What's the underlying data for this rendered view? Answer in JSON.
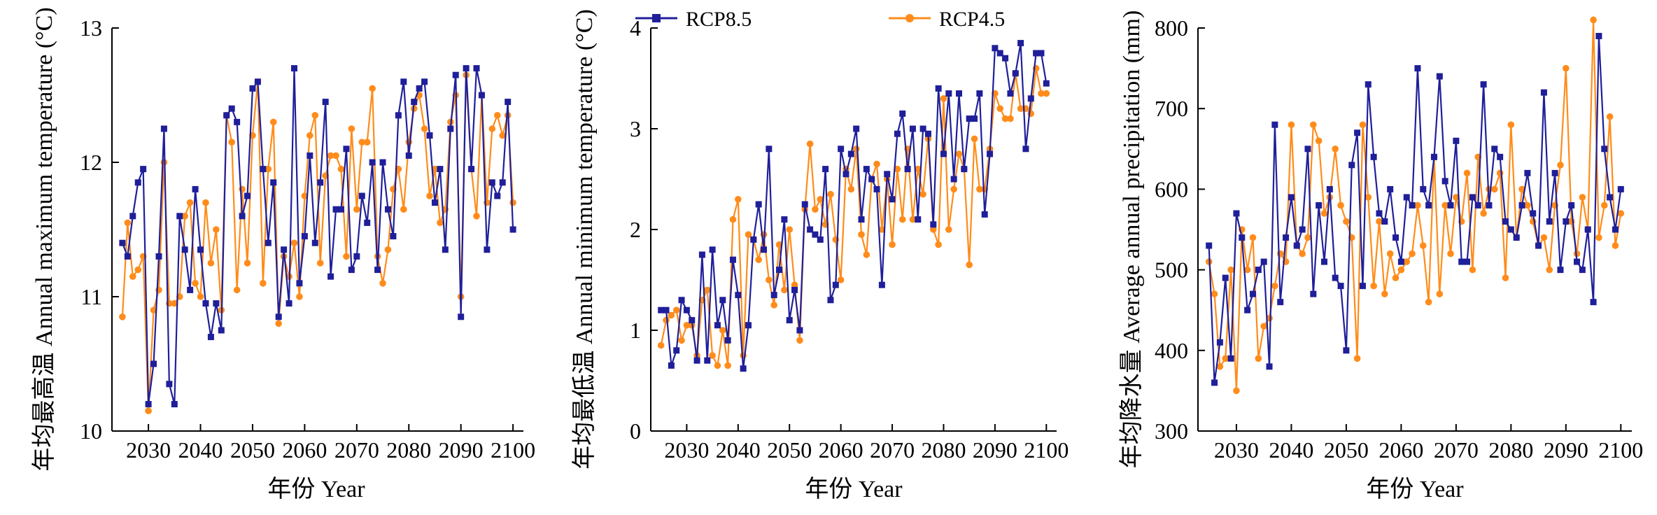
{
  "legend": [
    {
      "name": "RCP8.5",
      "color": "#1f1f9a"
    },
    {
      "name": "RCP4.5",
      "color": "#ff8c1a"
    }
  ],
  "chart_data": [
    {
      "type": "line",
      "ylabel": "年均最高温 Annual maximum temperature (°C)",
      "xlabel": "年份 Year",
      "xlim": [
        2025,
        2100
      ],
      "ylim": [
        10,
        13
      ],
      "xticks": [
        2030,
        2040,
        2050,
        2060,
        2070,
        2080,
        2090,
        2100
      ],
      "yticks": [
        10,
        11,
        12,
        13
      ],
      "x": [
        2025,
        2026,
        2027,
        2028,
        2029,
        2030,
        2031,
        2032,
        2033,
        2034,
        2035,
        2036,
        2037,
        2038,
        2039,
        2040,
        2041,
        2042,
        2043,
        2044,
        2045,
        2046,
        2047,
        2048,
        2049,
        2050,
        2051,
        2052,
        2053,
        2054,
        2055,
        2056,
        2057,
        2058,
        2059,
        2060,
        2061,
        2062,
        2063,
        2064,
        2065,
        2066,
        2067,
        2068,
        2069,
        2070,
        2071,
        2072,
        2073,
        2074,
        2075,
        2076,
        2077,
        2078,
        2079,
        2080,
        2081,
        2082,
        2083,
        2084,
        2085,
        2086,
        2087,
        2088,
        2089,
        2090,
        2091,
        2092,
        2093,
        2094,
        2095,
        2096,
        2097,
        2098,
        2099,
        2100
      ],
      "series": [
        {
          "name": "RCP8.5",
          "values": [
            11.4,
            11.3,
            11.6,
            11.85,
            11.95,
            10.2,
            10.5,
            11.3,
            12.25,
            10.35,
            10.2,
            11.6,
            11.35,
            11.05,
            11.8,
            11.35,
            10.95,
            10.7,
            10.95,
            10.75,
            12.35,
            12.4,
            12.3,
            11.6,
            11.75,
            12.55,
            12.6,
            11.95,
            11.4,
            11.85,
            10.85,
            11.35,
            10.95,
            12.7,
            11.1,
            11.45,
            12.05,
            11.4,
            11.85,
            12.45,
            11.15,
            11.65,
            11.65,
            12.1,
            11.2,
            11.3,
            11.75,
            11.55,
            12.0,
            11.2,
            12.0,
            11.65,
            11.45,
            12.35,
            12.6,
            12.05,
            12.45,
            12.55,
            12.6,
            12.2,
            11.7,
            11.95,
            11.35,
            12.25,
            12.65,
            10.85,
            12.7,
            11.95,
            12.7,
            12.5,
            11.35,
            11.85,
            11.75,
            11.85,
            12.45,
            11.5
          ]
        },
        {
          "name": "RCP4.5",
          "values": [
            10.85,
            11.55,
            11.15,
            11.2,
            11.3,
            10.15,
            10.9,
            11.05,
            12.0,
            10.95,
            10.95,
            11.0,
            11.6,
            11.7,
            11.1,
            11.0,
            11.7,
            11.25,
            11.5,
            10.9,
            12.35,
            12.15,
            11.05,
            11.8,
            11.25,
            12.2,
            12.6,
            11.1,
            11.95,
            12.3,
            10.8,
            11.3,
            11.15,
            11.4,
            11.0,
            11.75,
            12.2,
            12.35,
            11.25,
            11.9,
            12.05,
            12.05,
            11.95,
            11.3,
            12.25,
            11.65,
            12.15,
            12.15,
            12.55,
            11.3,
            11.1,
            11.35,
            11.8,
            11.95,
            11.65,
            12.15,
            12.4,
            12.5,
            12.25,
            11.75,
            11.95,
            11.55,
            11.65,
            12.3,
            12.5,
            11.0,
            12.65,
            11.95,
            11.6,
            12.5,
            11.7,
            12.25,
            12.35,
            12.2,
            12.35,
            11.7
          ]
        }
      ]
    },
    {
      "type": "line",
      "ylabel": "年均最低温 Annual minimum temperature (°C)",
      "xlabel": "年份 Year",
      "xlim": [
        2025,
        2100
      ],
      "ylim": [
        0,
        4
      ],
      "xticks": [
        2030,
        2040,
        2050,
        2060,
        2070,
        2080,
        2090,
        2100
      ],
      "yticks": [
        0,
        1,
        2,
        3,
        4
      ],
      "x": [
        2025,
        2026,
        2027,
        2028,
        2029,
        2030,
        2031,
        2032,
        2033,
        2034,
        2035,
        2036,
        2037,
        2038,
        2039,
        2040,
        2041,
        2042,
        2043,
        2044,
        2045,
        2046,
        2047,
        2048,
        2049,
        2050,
        2051,
        2052,
        2053,
        2054,
        2055,
        2056,
        2057,
        2058,
        2059,
        2060,
        2061,
        2062,
        2063,
        2064,
        2065,
        2066,
        2067,
        2068,
        2069,
        2070,
        2071,
        2072,
        2073,
        2074,
        2075,
        2076,
        2077,
        2078,
        2079,
        2080,
        2081,
        2082,
        2083,
        2084,
        2085,
        2086,
        2087,
        2088,
        2089,
        2090,
        2091,
        2092,
        2093,
        2094,
        2095,
        2096,
        2097,
        2098,
        2099,
        2100
      ],
      "series": [
        {
          "name": "RCP8.5",
          "values": [
            1.2,
            1.2,
            0.65,
            0.8,
            1.3,
            1.2,
            1.1,
            0.7,
            1.75,
            0.7,
            1.8,
            1.05,
            1.3,
            0.9,
            1.7,
            1.35,
            0.62,
            1.05,
            1.9,
            2.25,
            1.8,
            2.8,
            1.35,
            1.6,
            2.1,
            1.1,
            1.4,
            1.0,
            2.25,
            2.0,
            1.95,
            1.9,
            2.6,
            1.3,
            1.45,
            2.8,
            2.55,
            2.75,
            3.0,
            2.1,
            2.6,
            2.5,
            2.4,
            1.45,
            2.55,
            2.3,
            2.95,
            3.15,
            2.6,
            3.0,
            2.1,
            3.0,
            2.95,
            2.05,
            3.4,
            2.75,
            3.35,
            2.5,
            3.35,
            2.6,
            3.1,
            3.1,
            3.35,
            2.15,
            2.75,
            3.8,
            3.75,
            3.7,
            3.35,
            3.55,
            3.85,
            2.8,
            3.3,
            3.75,
            3.75,
            3.45
          ]
        },
        {
          "name": "RCP4.5",
          "values": [
            0.85,
            1.1,
            1.15,
            1.2,
            0.9,
            1.05,
            1.05,
            0.75,
            1.3,
            1.4,
            0.75,
            0.65,
            1.0,
            0.65,
            2.1,
            2.3,
            0.75,
            1.95,
            1.9,
            1.7,
            1.95,
            1.5,
            1.25,
            1.85,
            1.4,
            2.0,
            1.45,
            0.9,
            2.2,
            2.85,
            2.2,
            2.3,
            2.05,
            2.35,
            1.9,
            1.5,
            2.6,
            2.4,
            2.8,
            1.95,
            1.75,
            2.5,
            2.65,
            2.0,
            2.5,
            1.85,
            2.6,
            2.1,
            2.8,
            2.1,
            2.6,
            2.35,
            2.9,
            2.0,
            1.85,
            3.3,
            2.0,
            2.4,
            2.75,
            2.6,
            1.65,
            2.9,
            2.4,
            2.4,
            2.8,
            3.35,
            3.2,
            3.1,
            3.1,
            3.55,
            3.2,
            3.2,
            3.15,
            3.6,
            3.35,
            3.35
          ]
        }
      ]
    },
    {
      "type": "line",
      "ylabel": "年均降水量 Average annual precipitation (mm)",
      "xlabel": "年份 Year",
      "xlim": [
        2025,
        2100
      ],
      "ylim": [
        300,
        800
      ],
      "xticks": [
        2030,
        2040,
        2050,
        2060,
        2070,
        2080,
        2090,
        2100
      ],
      "yticks": [
        300,
        400,
        500,
        600,
        700,
        800
      ],
      "x": [
        2025,
        2026,
        2027,
        2028,
        2029,
        2030,
        2031,
        2032,
        2033,
        2034,
        2035,
        2036,
        2037,
        2038,
        2039,
        2040,
        2041,
        2042,
        2043,
        2044,
        2045,
        2046,
        2047,
        2048,
        2049,
        2050,
        2051,
        2052,
        2053,
        2054,
        2055,
        2056,
        2057,
        2058,
        2059,
        2060,
        2061,
        2062,
        2063,
        2064,
        2065,
        2066,
        2067,
        2068,
        2069,
        2070,
        2071,
        2072,
        2073,
        2074,
        2075,
        2076,
        2077,
        2078,
        2079,
        2080,
        2081,
        2082,
        2083,
        2084,
        2085,
        2086,
        2087,
        2088,
        2089,
        2090,
        2091,
        2092,
        2093,
        2094,
        2095,
        2096,
        2097,
        2098,
        2099,
        2100
      ],
      "series": [
        {
          "name": "RCP8.5",
          "values": [
            530,
            360,
            410,
            490,
            390,
            570,
            540,
            450,
            470,
            500,
            510,
            380,
            680,
            460,
            540,
            590,
            530,
            550,
            650,
            470,
            580,
            510,
            600,
            490,
            480,
            400,
            630,
            670,
            480,
            730,
            640,
            570,
            560,
            600,
            540,
            510,
            590,
            580,
            750,
            600,
            580,
            640,
            740,
            610,
            580,
            660,
            510,
            510,
            590,
            580,
            730,
            580,
            650,
            640,
            560,
            550,
            540,
            580,
            620,
            570,
            530,
            720,
            560,
            620,
            500,
            560,
            580,
            510,
            500,
            550,
            460,
            790,
            650,
            590,
            550,
            600
          ]
        },
        {
          "name": "RCP4.5",
          "values": [
            510,
            470,
            380,
            390,
            500,
            350,
            550,
            500,
            540,
            390,
            430,
            440,
            480,
            520,
            510,
            680,
            530,
            520,
            540,
            680,
            660,
            570,
            590,
            650,
            580,
            560,
            540,
            390,
            680,
            590,
            480,
            560,
            470,
            520,
            490,
            500,
            510,
            520,
            580,
            530,
            460,
            640,
            470,
            580,
            520,
            590,
            560,
            620,
            500,
            640,
            570,
            600,
            600,
            620,
            490,
            680,
            540,
            600,
            580,
            560,
            530,
            540,
            500,
            580,
            630,
            750,
            560,
            520,
            590,
            550,
            810,
            540,
            580,
            690,
            530,
            570
          ]
        }
      ]
    }
  ]
}
